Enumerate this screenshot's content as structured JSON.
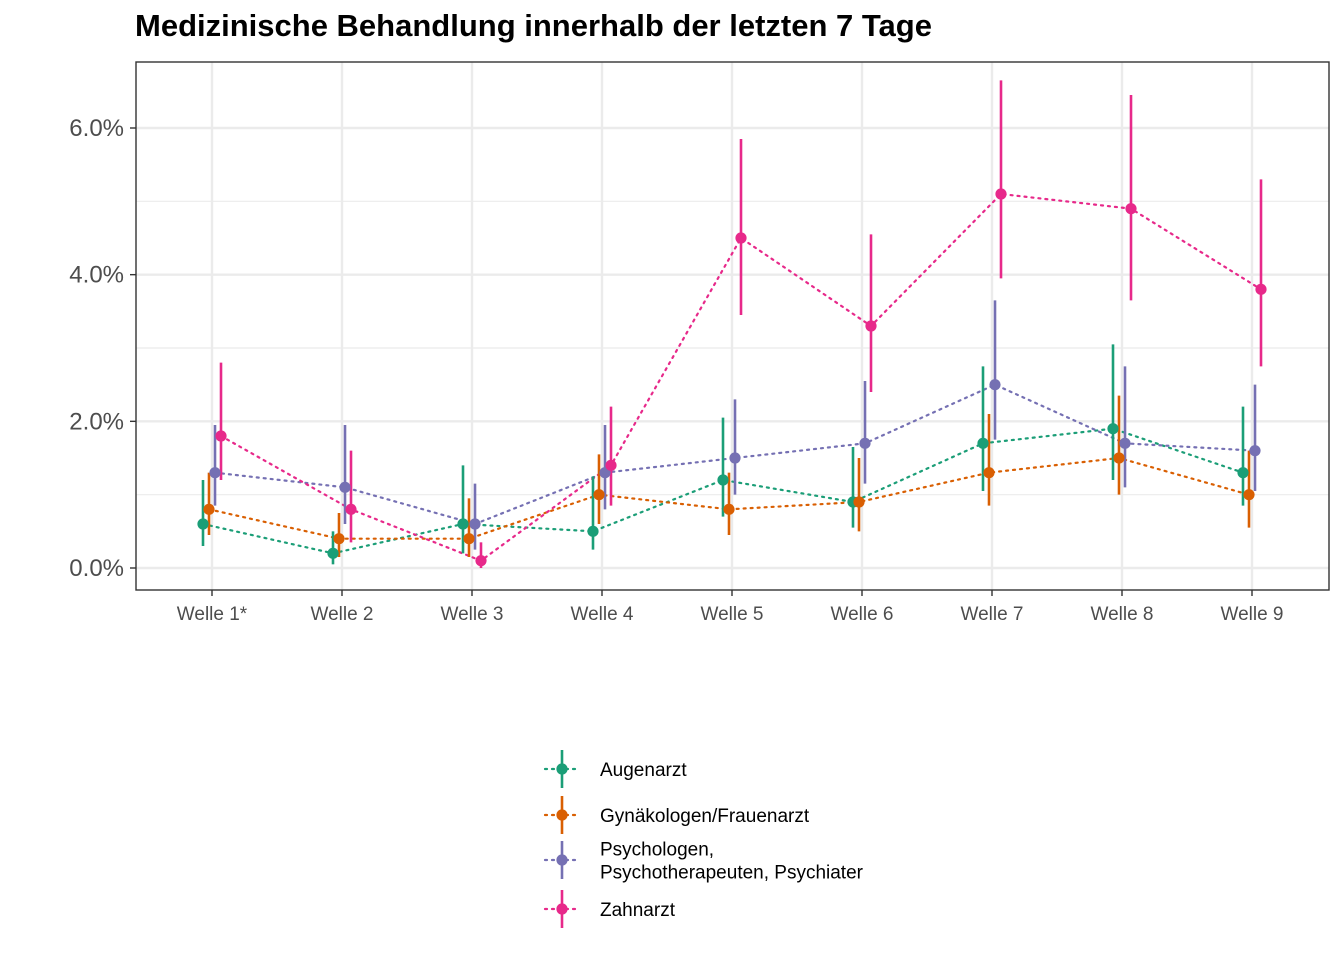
{
  "chart_data": {
    "type": "line",
    "title": "Medizinische Behandlung innerhalb der letzten 7 Tage",
    "xlabel": "",
    "ylabel": "",
    "categories": [
      "Welle 1*",
      "Welle 2",
      "Welle 3",
      "Welle 4",
      "Welle 5",
      "Welle 6",
      "Welle 7",
      "Welle 8",
      "Welle 9"
    ],
    "y_ticks": [
      "0.0%",
      "2.0%",
      "4.0%",
      "6.0%"
    ],
    "ylim": [
      -0.3,
      6.9
    ],
    "grid": true,
    "legend_position": "bottom",
    "series": [
      {
        "name": "Augenarzt",
        "color": "#1b9e77",
        "values": [
          0.6,
          0.2,
          0.6,
          0.5,
          1.2,
          0.9,
          1.7,
          1.9,
          1.3
        ],
        "lower": [
          0.3,
          0.05,
          0.2,
          0.25,
          0.7,
          0.55,
          1.05,
          1.2,
          0.85
        ],
        "upper": [
          1.2,
          0.5,
          1.4,
          1.25,
          2.05,
          1.65,
          2.75,
          3.05,
          2.2
        ]
      },
      {
        "name": "Gynäkologen/Frauenarzt",
        "color": "#d95f02",
        "values": [
          0.8,
          0.4,
          0.4,
          1.0,
          0.8,
          0.9,
          1.3,
          1.5,
          1.0
        ],
        "lower": [
          0.45,
          0.15,
          0.15,
          0.6,
          0.45,
          0.5,
          0.85,
          1.0,
          0.55
        ],
        "upper": [
          1.3,
          0.75,
          0.95,
          1.55,
          1.3,
          1.5,
          2.1,
          2.35,
          1.6
        ]
      },
      {
        "name": "Psychologen,\nPsychotherapeuten, Psychiater",
        "color": "#7570b3",
        "values": [
          1.3,
          1.1,
          0.6,
          1.3,
          1.5,
          1.7,
          2.5,
          1.7,
          1.6
        ],
        "lower": [
          0.85,
          0.6,
          0.25,
          0.8,
          1.0,
          1.15,
          1.75,
          1.1,
          1.05
        ],
        "upper": [
          1.95,
          1.95,
          1.15,
          1.95,
          2.3,
          2.55,
          3.65,
          2.75,
          2.5
        ]
      },
      {
        "name": "Zahnarzt",
        "color": "#e7298a",
        "values": [
          1.8,
          0.8,
          0.1,
          1.4,
          4.5,
          3.3,
          5.1,
          4.9,
          3.8
        ],
        "lower": [
          1.2,
          0.35,
          0.0,
          0.85,
          3.45,
          2.4,
          3.95,
          3.65,
          2.75
        ],
        "upper": [
          2.8,
          1.6,
          0.35,
          2.2,
          5.85,
          4.55,
          6.65,
          6.45,
          5.3
        ]
      }
    ]
  }
}
